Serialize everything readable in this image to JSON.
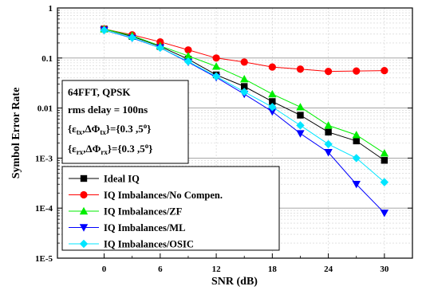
{
  "chart_data": {
    "type": "line",
    "xlabel": "SNR (dB)",
    "ylabel": "Symbol Error Rate",
    "x": [
      0,
      3,
      6,
      9,
      12,
      15,
      18,
      21,
      24,
      27,
      30
    ],
    "xlim": [
      -5,
      33
    ],
    "ylim": [
      1e-05,
      1
    ],
    "yscale": "log",
    "grid": true,
    "x_ticks": [
      0,
      6,
      12,
      18,
      24,
      30
    ],
    "y_tick_labels": [
      "1",
      "0.1",
      "0.01",
      "1E-3",
      "1E-4",
      "1E-5"
    ],
    "legend_position": "bottom-left",
    "annotation": {
      "line1": "64FFT, QPSK",
      "line2": "rms delay = 100ns",
      "line3_prefix": "{",
      "line3_eps": "ε",
      "line3_sub1": "tx",
      "line3_mid": ",ΔΦ",
      "line3_sub2": "tx",
      "line3_rest": "}={0.3 ,5",
      "line3_deg": "o",
      "line3_end": "}",
      "line4_prefix": "{",
      "line4_eps": "ε",
      "line4_sub1": "rx",
      "line4_mid": ",ΔΦ",
      "line4_sub2": "rx",
      "line4_rest": "}={0.3 ,5",
      "line4_deg": "o",
      "line4_end": "}"
    },
    "series": [
      {
        "name": "Ideal IQ",
        "color": "#000000",
        "marker": "square",
        "values": [
          0.38,
          0.27,
          0.17,
          0.095,
          0.046,
          0.027,
          0.0135,
          0.0072,
          0.0033,
          0.0022,
          0.0009
        ]
      },
      {
        "name": "IQ Imbalances/No Compen.",
        "color": "#ff0000",
        "marker": "circle",
        "values": [
          0.38,
          0.29,
          0.21,
          0.145,
          0.1,
          0.083,
          0.066,
          0.06,
          0.054,
          0.055,
          0.056
        ]
      },
      {
        "name": "IQ Imbalances/ZF",
        "color": "#00ee00",
        "marker": "triangle-up",
        "values": [
          0.38,
          0.28,
          0.175,
          0.11,
          0.068,
          0.038,
          0.019,
          0.0105,
          0.0045,
          0.0029,
          0.00125
        ]
      },
      {
        "name": "IQ Imbalances/ML",
        "color": "#0000ff",
        "marker": "triangle-down",
        "values": [
          0.36,
          0.25,
          0.16,
          0.083,
          0.041,
          0.019,
          0.0085,
          0.0031,
          0.0013,
          0.0003,
          8e-05
        ]
      },
      {
        "name": "IQ Imbalances/OSIC",
        "color": "#00e5ff",
        "marker": "diamond",
        "values": [
          0.36,
          0.255,
          0.16,
          0.085,
          0.043,
          0.021,
          0.0105,
          0.0045,
          0.0019,
          0.001,
          0.00033
        ]
      }
    ]
  }
}
